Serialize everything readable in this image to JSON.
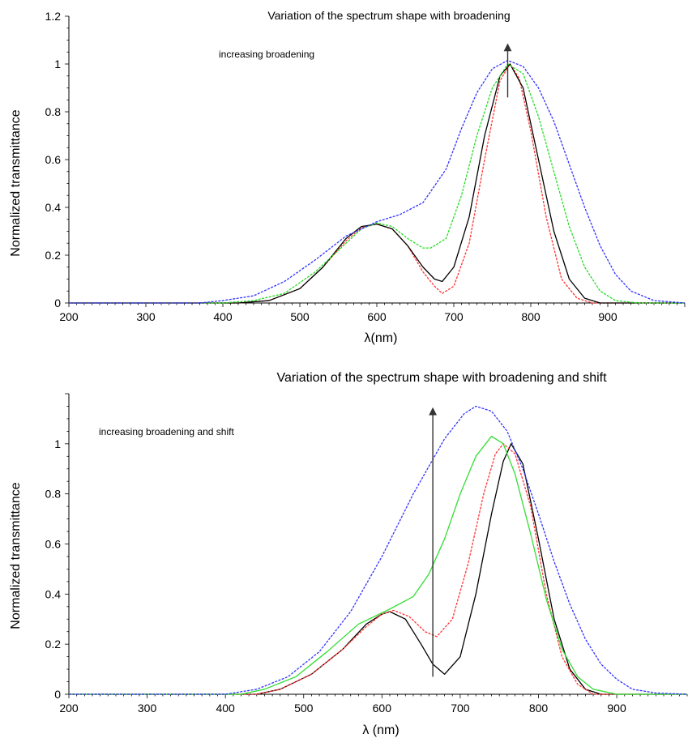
{
  "chart_data": [
    {
      "type": "line",
      "title": "Variation of the spectrum shape with broadening",
      "annotation": "increasing broadening",
      "xlabel": "λ(nm)",
      "ylabel": "Normalized transmittance",
      "xlim": [
        200,
        1000
      ],
      "ylim": [
        0,
        1.2
      ],
      "xticks": [
        200,
        300,
        400,
        500,
        600,
        700,
        800,
        900
      ],
      "yticks": [
        0,
        0.2,
        0.4,
        0.6,
        0.8,
        1,
        1.2
      ],
      "ytick_labels": [
        "0",
        "0.2",
        "0.4",
        "0.6",
        "0.8",
        "1",
        "1.2"
      ],
      "grid": false,
      "arrow": {
        "x": 770,
        "y_from": 0.86,
        "y_to": 1.07
      },
      "series": [
        {
          "color": "#ff3333",
          "dashed": true,
          "points": [
            [
              200,
              0
            ],
            [
              420,
              0
            ],
            [
              460,
              0.01
            ],
            [
              500,
              0.06
            ],
            [
              530,
              0.15
            ],
            [
              560,
              0.26
            ],
            [
              580,
              0.315
            ],
            [
              600,
              0.33
            ],
            [
              620,
              0.31
            ],
            [
              640,
              0.24
            ],
            [
              660,
              0.13
            ],
            [
              675,
              0.07
            ],
            [
              685,
              0.04
            ],
            [
              700,
              0.07
            ],
            [
              720,
              0.25
            ],
            [
              740,
              0.6
            ],
            [
              760,
              0.93
            ],
            [
              773,
              1.0
            ],
            [
              785,
              0.94
            ],
            [
              800,
              0.72
            ],
            [
              820,
              0.36
            ],
            [
              840,
              0.1
            ],
            [
              860,
              0.02
            ],
            [
              880,
              0
            ],
            [
              1000,
              0
            ]
          ]
        },
        {
          "color": "#000000",
          "dashed": false,
          "points": [
            [
              200,
              0
            ],
            [
              420,
              0
            ],
            [
              460,
              0.01
            ],
            [
              500,
              0.06
            ],
            [
              530,
              0.15
            ],
            [
              560,
              0.27
            ],
            [
              580,
              0.32
            ],
            [
              600,
              0.33
            ],
            [
              620,
              0.31
            ],
            [
              640,
              0.24
            ],
            [
              660,
              0.15
            ],
            [
              675,
              0.1
            ],
            [
              685,
              0.09
            ],
            [
              700,
              0.15
            ],
            [
              720,
              0.36
            ],
            [
              740,
              0.7
            ],
            [
              760,
              0.95
            ],
            [
              773,
              1.0
            ],
            [
              790,
              0.9
            ],
            [
              810,
              0.6
            ],
            [
              830,
              0.3
            ],
            [
              850,
              0.1
            ],
            [
              870,
              0.02
            ],
            [
              890,
              0
            ],
            [
              1000,
              0
            ]
          ]
        },
        {
          "color": "#22dd22",
          "dashed": true,
          "points": [
            [
              200,
              0
            ],
            [
              400,
              0
            ],
            [
              440,
              0.01
            ],
            [
              480,
              0.04
            ],
            [
              520,
              0.13
            ],
            [
              550,
              0.22
            ],
            [
              580,
              0.31
            ],
            [
              600,
              0.335
            ],
            [
              620,
              0.32
            ],
            [
              640,
              0.27
            ],
            [
              660,
              0.23
            ],
            [
              670,
              0.23
            ],
            [
              690,
              0.27
            ],
            [
              710,
              0.45
            ],
            [
              730,
              0.7
            ],
            [
              750,
              0.9
            ],
            [
              770,
              1.0
            ],
            [
              790,
              0.96
            ],
            [
              810,
              0.78
            ],
            [
              830,
              0.55
            ],
            [
              850,
              0.32
            ],
            [
              870,
              0.15
            ],
            [
              890,
              0.05
            ],
            [
              910,
              0.01
            ],
            [
              940,
              0
            ],
            [
              1000,
              0
            ]
          ]
        },
        {
          "color": "#3333ff",
          "dashed": true,
          "points": [
            [
              200,
              0
            ],
            [
              370,
              0
            ],
            [
              400,
              0.01
            ],
            [
              440,
              0.03
            ],
            [
              480,
              0.09
            ],
            [
              520,
              0.18
            ],
            [
              560,
              0.28
            ],
            [
              600,
              0.34
            ],
            [
              630,
              0.37
            ],
            [
              660,
              0.42
            ],
            [
              690,
              0.56
            ],
            [
              710,
              0.73
            ],
            [
              730,
              0.88
            ],
            [
              750,
              0.98
            ],
            [
              770,
              1.015
            ],
            [
              790,
              0.99
            ],
            [
              810,
              0.9
            ],
            [
              830,
              0.76
            ],
            [
              850,
              0.58
            ],
            [
              870,
              0.4
            ],
            [
              890,
              0.24
            ],
            [
              910,
              0.12
            ],
            [
              930,
              0.05
            ],
            [
              960,
              0.01
            ],
            [
              1000,
              0
            ]
          ]
        }
      ]
    },
    {
      "type": "line",
      "title": "Variation of the spectrum shape with broadening and shift",
      "annotation": "increasing broadening and shift",
      "xlabel": "λ (nm)",
      "ylabel": "Normalized transmittance",
      "xlim": [
        200,
        990
      ],
      "ylim": [
        0,
        1.2
      ],
      "xticks": [
        200,
        300,
        400,
        500,
        600,
        700,
        800,
        900
      ],
      "yticks": [
        0,
        0.2,
        0.4,
        0.6,
        0.8,
        1
      ],
      "ytick_labels": [
        "0",
        "0.2",
        "0.4",
        "0.6",
        "0.8",
        "1"
      ],
      "grid": false,
      "arrow": {
        "x": 665,
        "y_from": 0.07,
        "y_to": 1.13
      },
      "series": [
        {
          "color": "#000000",
          "dashed": false,
          "points": [
            [
              200,
              0
            ],
            [
              440,
              0
            ],
            [
              470,
              0.02
            ],
            [
              510,
              0.08
            ],
            [
              550,
              0.18
            ],
            [
              580,
              0.28
            ],
            [
              600,
              0.32
            ],
            [
              610,
              0.33
            ],
            [
              630,
              0.3
            ],
            [
              650,
              0.2
            ],
            [
              665,
              0.12
            ],
            [
              680,
              0.08
            ],
            [
              700,
              0.15
            ],
            [
              720,
              0.4
            ],
            [
              740,
              0.72
            ],
            [
              755,
              0.93
            ],
            [
              765,
              1.0
            ],
            [
              780,
              0.92
            ],
            [
              800,
              0.62
            ],
            [
              820,
              0.3
            ],
            [
              840,
              0.1
            ],
            [
              860,
              0.02
            ],
            [
              880,
              0
            ],
            [
              990,
              0
            ]
          ]
        },
        {
          "color": "#ff3333",
          "dashed": true,
          "points": [
            [
              200,
              0
            ],
            [
              440,
              0
            ],
            [
              470,
              0.02
            ],
            [
              510,
              0.08
            ],
            [
              550,
              0.18
            ],
            [
              580,
              0.27
            ],
            [
              600,
              0.32
            ],
            [
              615,
              0.335
            ],
            [
              635,
              0.31
            ],
            [
              655,
              0.25
            ],
            [
              670,
              0.23
            ],
            [
              690,
              0.3
            ],
            [
              710,
              0.52
            ],
            [
              730,
              0.8
            ],
            [
              745,
              0.96
            ],
            [
              755,
              1.0
            ],
            [
              770,
              0.96
            ],
            [
              790,
              0.75
            ],
            [
              810,
              0.4
            ],
            [
              830,
              0.15
            ],
            [
              850,
              0.04
            ],
            [
              870,
              0
            ],
            [
              990,
              0
            ]
          ]
        },
        {
          "color": "#33dd33",
          "dashed": false,
          "points": [
            [
              200,
              0
            ],
            [
              420,
              0
            ],
            [
              450,
              0.02
            ],
            [
              490,
              0.07
            ],
            [
              530,
              0.17
            ],
            [
              570,
              0.28
            ],
            [
              610,
              0.34
            ],
            [
              640,
              0.39
            ],
            [
              660,
              0.48
            ],
            [
              680,
              0.62
            ],
            [
              700,
              0.8
            ],
            [
              720,
              0.95
            ],
            [
              740,
              1.03
            ],
            [
              755,
              1.0
            ],
            [
              770,
              0.88
            ],
            [
              790,
              0.64
            ],
            [
              810,
              0.38
            ],
            [
              830,
              0.18
            ],
            [
              850,
              0.07
            ],
            [
              870,
              0.02
            ],
            [
              900,
              0
            ],
            [
              990,
              0
            ]
          ]
        },
        {
          "color": "#3333ff",
          "dashed": true,
          "points": [
            [
              200,
              0
            ],
            [
              400,
              0
            ],
            [
              440,
              0.02
            ],
            [
              480,
              0.07
            ],
            [
              520,
              0.17
            ],
            [
              560,
              0.33
            ],
            [
              600,
              0.55
            ],
            [
              640,
              0.8
            ],
            [
              680,
              1.02
            ],
            [
              705,
              1.12
            ],
            [
              720,
              1.15
            ],
            [
              740,
              1.13
            ],
            [
              760,
              1.05
            ],
            [
              780,
              0.9
            ],
            [
              800,
              0.72
            ],
            [
              820,
              0.53
            ],
            [
              840,
              0.36
            ],
            [
              860,
              0.22
            ],
            [
              880,
              0.12
            ],
            [
              900,
              0.06
            ],
            [
              920,
              0.02
            ],
            [
              950,
              0.005
            ],
            [
              990,
              0
            ]
          ]
        }
      ]
    }
  ]
}
